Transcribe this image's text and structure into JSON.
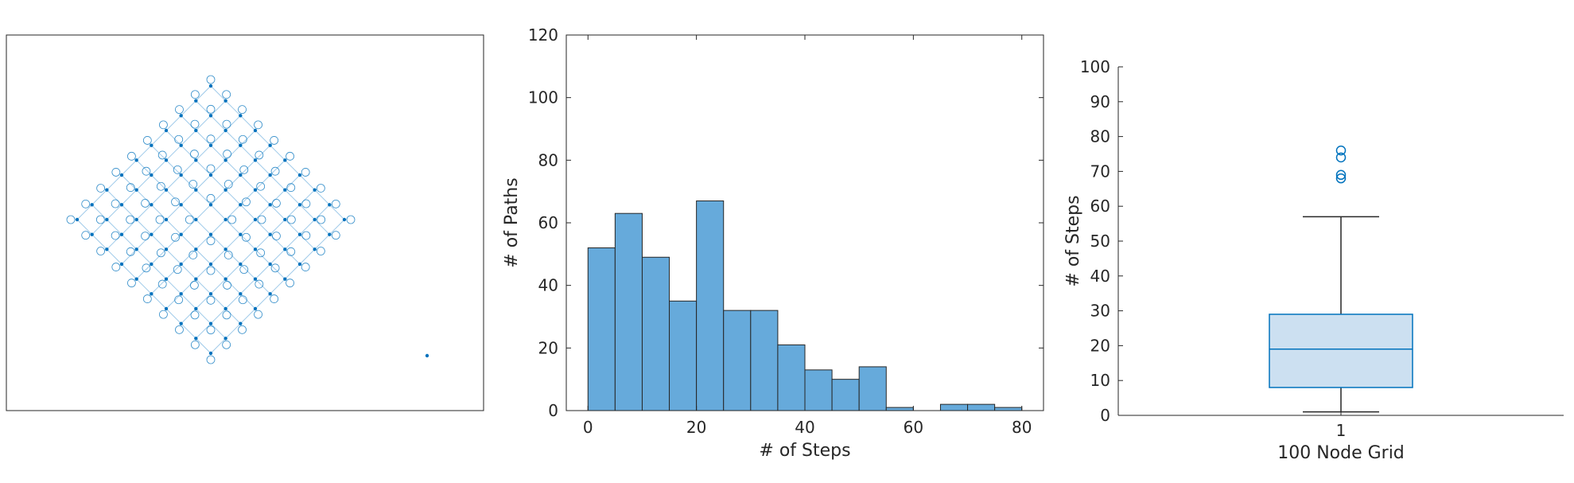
{
  "colors": {
    "accent": "#0072BD",
    "bar_fill": "#66AADB",
    "box_fill": "#CCE0F1",
    "axis": "#262626",
    "edge": "#9ECAE9"
  },
  "chart_data": [
    {
      "type": "graph",
      "title": "",
      "description_layout": "diamond grid",
      "grid_rows": 10,
      "grid_cols": 10,
      "node_marker": "dot",
      "self_loop_marker": "circle",
      "isolated_nodes": 1
    },
    {
      "type": "histogram",
      "title": "",
      "xlabel": "# of Steps",
      "ylabel": "# of Paths",
      "bin_edges": [
        0,
        5,
        10,
        15,
        20,
        25,
        30,
        35,
        40,
        45,
        50,
        55,
        60,
        65,
        70,
        75,
        80
      ],
      "values": [
        52,
        63,
        49,
        35,
        67,
        32,
        32,
        21,
        13,
        10,
        14,
        1,
        0,
        2,
        2,
        1
      ],
      "xlim": [
        -4,
        84
      ],
      "ylim": [
        0,
        120
      ],
      "xticks": [
        "0",
        "20",
        "40",
        "60",
        "80"
      ],
      "yticks": [
        "0",
        "20",
        "40",
        "60",
        "80",
        "100",
        "120"
      ]
    },
    {
      "type": "box",
      "title": "",
      "xlabel": "100 Node Grid",
      "ylabel": "# of Steps",
      "categories": [
        "1"
      ],
      "median": 19,
      "q1": 8,
      "q3": 29,
      "whisker_low": 1,
      "whisker_high": 57,
      "outliers": [
        68,
        69,
        74,
        76
      ],
      "ylim": [
        0,
        100
      ],
      "yticks": [
        "0",
        "10",
        "20",
        "30",
        "40",
        "50",
        "60",
        "70",
        "80",
        "90",
        "100"
      ]
    }
  ]
}
